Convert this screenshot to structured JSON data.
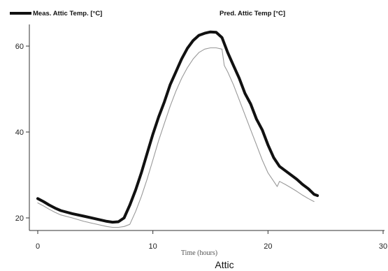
{
  "chart_data": {
    "type": "line",
    "title": "Attic",
    "xlabel": "Time  (hours)",
    "ylabel": "",
    "xlim": [
      0,
      30
    ],
    "ylim": [
      17,
      66
    ],
    "xticks": [
      0,
      10,
      20,
      30
    ],
    "yticks": [
      20,
      40,
      60
    ],
    "grid": false,
    "legend_position": "top",
    "series": [
      {
        "name": "Meas. Attic Temp. [°C]",
        "color": "#111111",
        "style": "thick",
        "x": [
          0,
          0.5,
          1,
          1.5,
          2,
          3,
          4,
          5,
          6,
          6.5,
          7,
          7.5,
          8,
          8.5,
          9,
          9.5,
          10,
          10.5,
          11,
          11.5,
          12,
          12.5,
          13,
          13.5,
          14,
          14.5,
          15,
          15.5,
          16,
          16.5,
          17,
          17.5,
          18,
          18.5,
          19,
          19.5,
          20,
          20.5,
          21,
          21.5,
          22,
          22.5,
          23,
          23.5,
          24,
          24.3
        ],
        "y": [
          24.5,
          23.8,
          23.0,
          22.3,
          21.7,
          21.0,
          20.4,
          19.8,
          19.2,
          19.0,
          19.1,
          20.0,
          23.0,
          26.5,
          30.5,
          35.0,
          39.5,
          43.5,
          47.0,
          51.0,
          54.0,
          57.0,
          59.5,
          61.3,
          62.5,
          63.0,
          63.3,
          63.2,
          62.0,
          58.5,
          55.5,
          52.5,
          49.0,
          46.5,
          43.0,
          40.5,
          37.0,
          34.0,
          32.0,
          31.0,
          30.0,
          29.0,
          27.8,
          26.8,
          25.5,
          25.2
        ]
      },
      {
        "name": "Pred. Attic Temp [°C]",
        "color": "#999999",
        "style": "thin",
        "x": [
          0,
          0.5,
          1,
          1.5,
          2,
          3,
          4,
          5,
          6,
          6.5,
          7,
          7.5,
          8,
          8.5,
          9,
          9.5,
          10,
          10.5,
          11,
          11.5,
          12,
          12.5,
          13,
          13.5,
          14,
          14.5,
          15,
          15.5,
          16,
          16.2,
          16.5,
          17,
          17.5,
          18,
          18.5,
          19,
          19.5,
          20,
          20.5,
          20.8,
          21,
          21.5,
          22,
          22.5,
          23,
          23.5,
          24
        ],
        "y": [
          23.5,
          22.8,
          22.0,
          21.3,
          20.7,
          20.0,
          19.2,
          18.6,
          18.0,
          17.8,
          17.8,
          18.0,
          18.5,
          21.5,
          25.0,
          29.0,
          33.5,
          38.0,
          42.0,
          46.0,
          49.5,
          52.5,
          55.0,
          57.0,
          58.5,
          59.3,
          59.6,
          59.6,
          59.3,
          55.5,
          54.0,
          51.0,
          47.5,
          44.0,
          40.5,
          37.0,
          33.5,
          30.5,
          28.5,
          27.3,
          28.5,
          27.8,
          27.0,
          26.2,
          25.3,
          24.5,
          23.8
        ]
      }
    ]
  }
}
